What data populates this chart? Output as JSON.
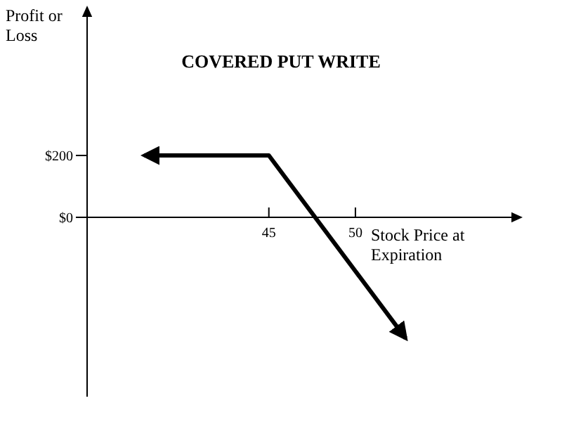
{
  "chart_data": {
    "type": "line",
    "title": "COVERED PUT WRITE",
    "xlabel": "Stock Price at\nExpiration",
    "ylabel": "Profit or\nLoss",
    "x": [
      37.8,
      45,
      52.9
    ],
    "series": [
      {
        "color": "#000000",
        "values": [
          200,
          200,
          -391
        ]
      }
    ],
    "xlim": [
      34.5,
      59.5
    ],
    "xticks": [
      45,
      50
    ],
    "ylim": [
      -580,
      680
    ],
    "yticks": [
      {
        "value": 0,
        "label": "$0"
      },
      {
        "value": 200,
        "label": "$200"
      }
    ],
    "marker": "none",
    "line_style": "solid"
  }
}
